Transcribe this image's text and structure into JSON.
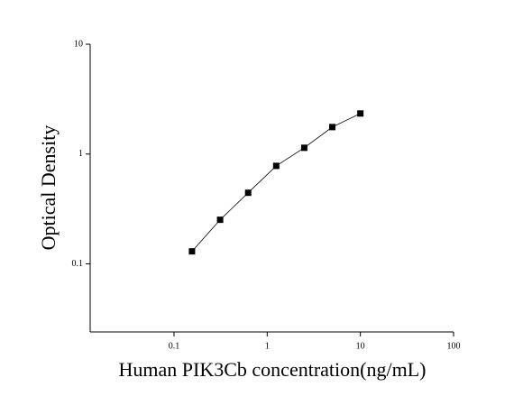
{
  "chart_data": {
    "type": "scatter",
    "log_x": true,
    "log_y": true,
    "x_label": "Human PIK3Cb concentration(ng/mL)",
    "y_label": "Optical Density",
    "xlim": [
      0.0126,
      100
    ],
    "ylim": [
      0.024,
      10
    ],
    "xticks": [
      0.1,
      1,
      10,
      100
    ],
    "yticks": [
      0.1,
      1,
      10
    ],
    "fit_line": true,
    "color": "#000000",
    "series": [
      {
        "x": [
          0.156,
          0.3125,
          0.625,
          1.25,
          2.5,
          5,
          10
        ],
        "values": [
          0.13,
          0.252,
          0.444,
          0.78,
          1.14,
          1.76,
          2.34
        ]
      }
    ]
  }
}
